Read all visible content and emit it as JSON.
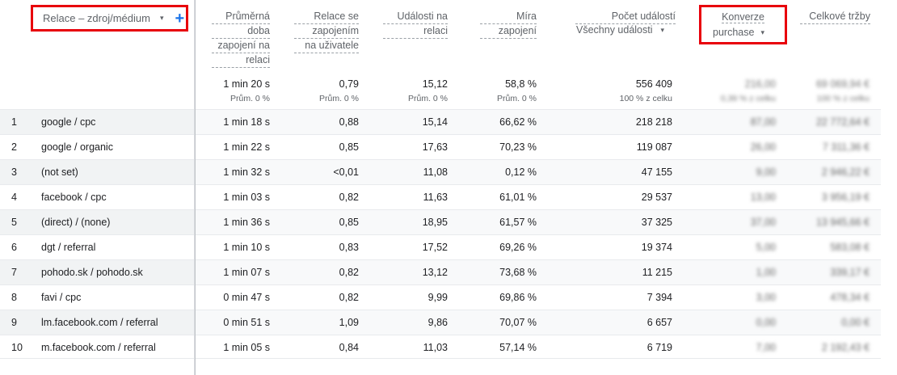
{
  "dimension_header": {
    "label": "Relace – zdroj/médium",
    "caret": "▾",
    "add": "+"
  },
  "columns": [
    {
      "key": "avg_engagement",
      "label_lines": [
        "Průměrná",
        "doba",
        "zapojení na",
        "relaci"
      ]
    },
    {
      "key": "engaged_per_user",
      "label_lines": [
        "Relace se",
        "zapojením",
        "na uživatele"
      ]
    },
    {
      "key": "events_per_session",
      "label_lines": [
        "Události na",
        "relaci"
      ]
    },
    {
      "key": "engagement_rate",
      "label_lines": [
        "Míra",
        "zapojení"
      ]
    },
    {
      "key": "event_count",
      "label_lines": [
        "Počet událostí"
      ],
      "selector": "Všechny události",
      "selector_caret": "▾"
    },
    {
      "key": "conversions",
      "label_lines": [
        "Konverze"
      ],
      "selector": "purchase",
      "selector_caret": "▾"
    },
    {
      "key": "revenue",
      "label_lines": [
        "Celkové tržby"
      ]
    }
  ],
  "totals": {
    "avg_engagement": "1 min 20 s",
    "engaged_per_user": "0,79",
    "events_per_session": "15,12",
    "engagement_rate": "58,8 %",
    "event_count": "556 409",
    "conversions": "216,00",
    "revenue": "69 069,94 €"
  },
  "totals_sub": {
    "avg_engagement": "Prům. 0 %",
    "engaged_per_user": "Prům. 0 %",
    "events_per_session": "Prům. 0 %",
    "engagement_rate": "Prům. 0 %",
    "event_count": "100 % z celku",
    "conversions": "0,39 % z celku",
    "revenue": "100 % z celku"
  },
  "rows": [
    {
      "idx": "1",
      "dim": "google / cpc",
      "v": [
        "1 min 18 s",
        "0,88",
        "15,14",
        "66,62 %",
        "218 218",
        "87,00",
        "22 772,64 €"
      ]
    },
    {
      "idx": "2",
      "dim": "google / organic",
      "v": [
        "1 min 22 s",
        "0,85",
        "17,63",
        "70,23 %",
        "119 087",
        "26,00",
        "7 311,36 €"
      ]
    },
    {
      "idx": "3",
      "dim": "(not set)",
      "v": [
        "1 min 32 s",
        "<0,01",
        "11,08",
        "0,12 %",
        "47 155",
        "9,00",
        "2 946,22 €"
      ]
    },
    {
      "idx": "4",
      "dim": "facebook / cpc",
      "v": [
        "1 min 03 s",
        "0,82",
        "11,63",
        "61,01 %",
        "29 537",
        "13,00",
        "3 956,19 €"
      ]
    },
    {
      "idx": "5",
      "dim": "(direct) / (none)",
      "v": [
        "1 min 36 s",
        "0,85",
        "18,95",
        "61,57 %",
        "37 325",
        "37,00",
        "13 945,66 €"
      ]
    },
    {
      "idx": "6",
      "dim": "dgt / referral",
      "v": [
        "1 min 10 s",
        "0,83",
        "17,52",
        "69,26 %",
        "19 374",
        "5,00",
        "583,08 €"
      ]
    },
    {
      "idx": "7",
      "dim": "pohodo.sk / pohodo.sk",
      "v": [
        "1 min 07 s",
        "0,82",
        "13,12",
        "73,68 %",
        "11 215",
        "1,00",
        "339,17 €"
      ]
    },
    {
      "idx": "8",
      "dim": "favi / cpc",
      "v": [
        "0 min 47 s",
        "0,82",
        "9,99",
        "69,86 %",
        "7 394",
        "3,00",
        "478,34 €"
      ]
    },
    {
      "idx": "9",
      "dim": "lm.facebook.com / referral",
      "v": [
        "0 min 51 s",
        "1,09",
        "9,86",
        "70,07 %",
        "6 657",
        "0,00",
        "0,00 €"
      ]
    },
    {
      "idx": "10",
      "dim": "m.facebook.com / referral",
      "v": [
        "1 min 05 s",
        "0,84",
        "11,03",
        "57,14 %",
        "6 719",
        "7,00",
        "2 192,43 €"
      ]
    }
  ],
  "colors": {
    "highlight_border": "#e8000b",
    "accent_blue": "#1a73e8",
    "row_shade": "#f1f3f4"
  }
}
